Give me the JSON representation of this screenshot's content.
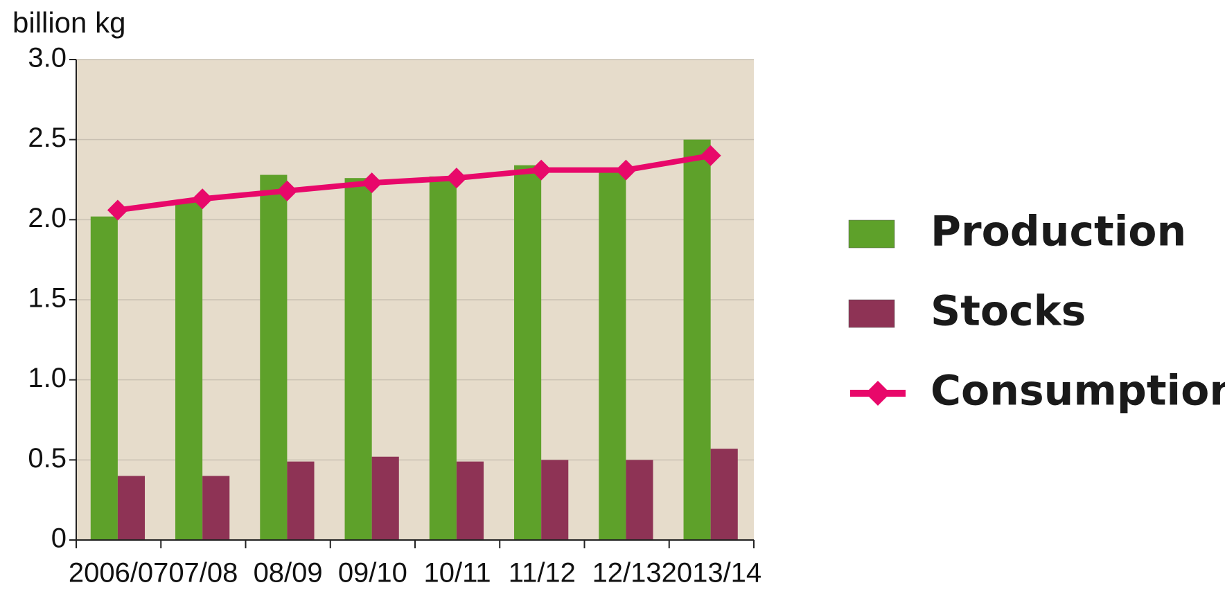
{
  "chart_data": {
    "type": "bar",
    "ylabel": "billion kg",
    "categories": [
      "2006/07",
      "07/08",
      "08/09",
      "09/10",
      "10/11",
      "11/12",
      "12/13",
      "2013/14"
    ],
    "series": [
      {
        "name": "Production",
        "type": "bar",
        "color": "#5ea12a",
        "values": [
          2.02,
          2.12,
          2.28,
          2.26,
          2.27,
          2.34,
          2.32,
          2.5
        ]
      },
      {
        "name": "Stocks",
        "type": "bar",
        "color": "#8e3355",
        "values": [
          0.4,
          0.4,
          0.49,
          0.52,
          0.49,
          0.5,
          0.5,
          0.57
        ]
      },
      {
        "name": "Consumption",
        "type": "line",
        "color": "#e8086a",
        "values": [
          2.06,
          2.13,
          2.18,
          2.23,
          2.26,
          2.31,
          2.31,
          2.4
        ]
      }
    ],
    "ylim": [
      0,
      3.0
    ],
    "yticks": [
      0,
      0.5,
      {
        "value": 1.0,
        "label": "1.0"
      },
      1.5,
      {
        "value": 2.0,
        "label": "2.0"
      },
      2.5,
      {
        "value": 3.0,
        "label": "3.0"
      }
    ],
    "grid": true,
    "background": "#e6dccb",
    "legend": "right"
  }
}
